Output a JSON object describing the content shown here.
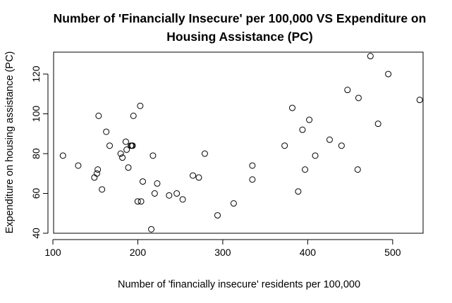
{
  "chart_data": {
    "type": "scatter",
    "title_line1": "Number of 'Financially Insecure' per 100,000 VS Expenditure on",
    "title_line2": "Housing Assistance (PC)",
    "xlabel": "Number of 'financially insecure' residents per 100,000",
    "ylabel": "Expenditure on housing assistance (PC)",
    "xlim": [
      100,
      535
    ],
    "ylim": [
      40,
      131
    ],
    "x_ticks": [
      "100",
      "200",
      "300",
      "400",
      "500"
    ],
    "y_ticks": [
      "40",
      "60",
      "80",
      "100",
      "120"
    ],
    "grid": false,
    "marker": "open-circle",
    "color": "#000000",
    "x": [
      111,
      129,
      148,
      151,
      152,
      153,
      157,
      162,
      166,
      179,
      181,
      185,
      186,
      188,
      191,
      192,
      193,
      194,
      199,
      202,
      203,
      205,
      215,
      217,
      219,
      222,
      236,
      245,
      252,
      264,
      271,
      278,
      293,
      312,
      334,
      334,
      372,
      381,
      388,
      393,
      396,
      401,
      408,
      425,
      439,
      446,
      458,
      459,
      473,
      482,
      494,
      531
    ],
    "y": [
      79,
      74,
      68,
      70,
      72,
      99,
      62,
      91,
      84,
      80,
      78,
      86,
      82,
      73,
      84,
      84,
      84,
      99,
      56,
      104,
      56,
      66,
      42,
      79,
      60,
      65,
      59,
      60,
      57,
      69,
      68,
      80,
      49,
      55,
      74,
      67,
      84,
      103,
      61,
      92,
      72,
      97,
      79,
      87,
      84,
      112,
      72,
      108,
      129,
      95,
      120,
      107
    ]
  }
}
